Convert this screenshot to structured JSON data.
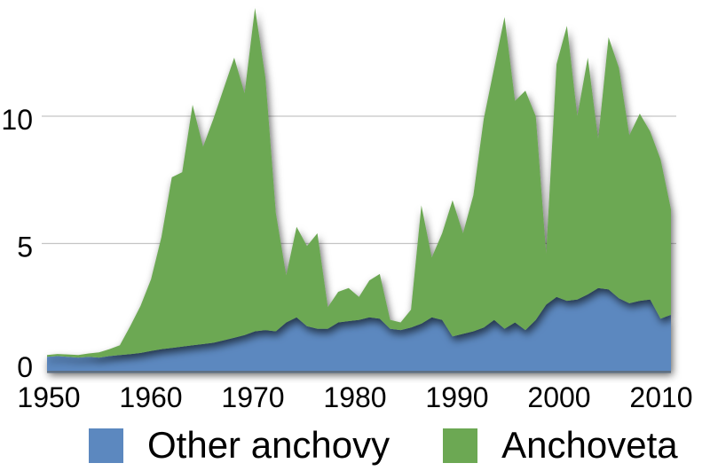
{
  "chart_data": {
    "type": "area",
    "stacked": true,
    "title": "",
    "xlabel": "",
    "ylabel": "",
    "grid": "horizontal-light",
    "legend_position": "bottom",
    "xlim": [
      1950,
      2010
    ],
    "ylim": [
      0,
      14.6
    ],
    "x_ticks": [
      1950,
      1960,
      1970,
      1980,
      1990,
      2000,
      2010
    ],
    "y_ticks": [
      0,
      5,
      10
    ],
    "y_tick_labels": [
      "0",
      "5",
      "10"
    ],
    "x_tick_labels": [
      "1950",
      "1960",
      "1970",
      "1980",
      "1990",
      "2000",
      "2010"
    ],
    "x": [
      1950,
      1951,
      1952,
      1953,
      1954,
      1955,
      1956,
      1957,
      1958,
      1959,
      1960,
      1961,
      1962,
      1963,
      1964,
      1965,
      1966,
      1967,
      1968,
      1969,
      1970,
      1971,
      1972,
      1973,
      1974,
      1975,
      1976,
      1977,
      1978,
      1979,
      1980,
      1981,
      1982,
      1983,
      1984,
      1985,
      1986,
      1987,
      1988,
      1989,
      1990,
      1991,
      1992,
      1993,
      1994,
      1995,
      1996,
      1997,
      1998,
      1999,
      2000,
      2001,
      2002,
      2003,
      2004,
      2005,
      2006,
      2007,
      2008,
      2009,
      2010
    ],
    "series": [
      {
        "name": "Other anchovy",
        "color": "#5C88BF",
        "values": [
          0.55,
          0.58,
          0.55,
          0.52,
          0.55,
          0.52,
          0.58,
          0.62,
          0.65,
          0.7,
          0.78,
          0.85,
          0.9,
          0.95,
          1.0,
          1.05,
          1.1,
          1.2,
          1.3,
          1.4,
          1.55,
          1.6,
          1.55,
          1.9,
          2.1,
          1.75,
          1.65,
          1.65,
          1.9,
          1.95,
          2.0,
          2.1,
          2.05,
          1.65,
          1.6,
          1.7,
          1.85,
          2.1,
          2.0,
          1.35,
          1.45,
          1.55,
          1.7,
          2.0,
          1.65,
          1.9,
          1.6,
          2.0,
          2.6,
          2.9,
          2.75,
          2.8,
          3.0,
          3.25,
          3.2,
          2.85,
          2.65,
          2.75,
          2.8,
          2.05,
          2.2
        ]
      },
      {
        "name": "Anchoveta",
        "color": "#6CA853",
        "values": [
          0.07,
          0.08,
          0.09,
          0.1,
          0.13,
          0.2,
          0.27,
          0.38,
          1.1,
          1.85,
          2.82,
          4.4,
          6.7,
          6.85,
          9.45,
          7.75,
          8.8,
          9.9,
          11.0,
          9.5,
          12.7,
          9.9,
          4.65,
          1.85,
          3.55,
          3.15,
          3.75,
          0.85,
          1.2,
          1.3,
          0.9,
          1.45,
          1.75,
          0.35,
          0.3,
          0.7,
          4.65,
          2.35,
          3.4,
          5.35,
          3.95,
          5.35,
          8.2,
          9.9,
          12.25,
          8.7,
          9.4,
          8.0,
          2.0,
          9.15,
          10.8,
          7.2,
          9.3,
          5.85,
          9.9,
          9.05,
          6.6,
          7.35,
          6.6,
          6.25,
          4.15
        ]
      }
    ]
  },
  "style": {
    "gridline_color": "#c5c5c5",
    "baseline_color": "#5b6e83",
    "background": "#ffffff"
  }
}
